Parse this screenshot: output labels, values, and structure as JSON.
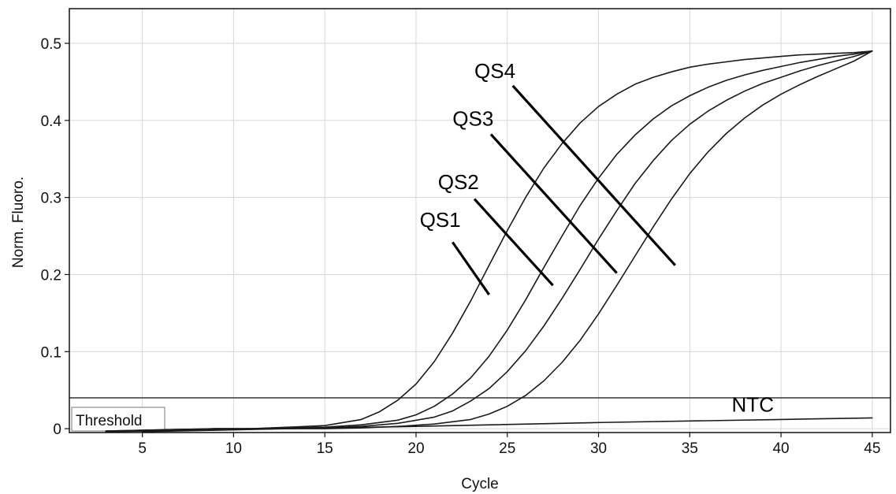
{
  "chart_data": {
    "type": "line",
    "xlabel": "Cycle",
    "ylabel": "Norm. Fluoro.",
    "xlim": [
      1,
      46
    ],
    "ylim": [
      -0.005,
      0.545
    ],
    "xticks": [
      5,
      10,
      15,
      20,
      25,
      30,
      35,
      40,
      45
    ],
    "yticks": [
      0,
      0.1,
      0.2,
      0.3,
      0.4,
      0.5
    ],
    "ytick_labels": [
      "0",
      "0.1",
      "0.2",
      "0.3",
      "0.4",
      "0.5"
    ],
    "grid": true,
    "threshold": {
      "label": "Threshold",
      "value": 0.04
    },
    "series": [
      {
        "name": "QS1",
        "x": [
          3,
          5,
          7,
          9,
          11,
          13,
          15,
          17,
          18,
          19,
          20,
          21,
          22,
          23,
          24,
          25,
          26,
          27,
          28,
          29,
          30,
          31,
          32,
          33,
          34,
          35,
          36,
          37,
          38,
          39,
          40,
          41,
          42,
          43,
          44,
          45
        ],
        "y": [
          -0.003,
          -0.002,
          -0.001,
          0.0,
          0.0,
          0.002,
          0.004,
          0.012,
          0.022,
          0.037,
          0.058,
          0.087,
          0.124,
          0.166,
          0.212,
          0.257,
          0.3,
          0.338,
          0.37,
          0.397,
          0.418,
          0.434,
          0.447,
          0.456,
          0.463,
          0.469,
          0.473,
          0.476,
          0.479,
          0.481,
          0.483,
          0.485,
          0.486,
          0.487,
          0.488,
          0.49
        ]
      },
      {
        "name": "QS2",
        "x": [
          3,
          5,
          7,
          9,
          11,
          13,
          15,
          17,
          19,
          20,
          21,
          22,
          23,
          24,
          25,
          26,
          27,
          28,
          29,
          30,
          31,
          32,
          33,
          34,
          35,
          36,
          37,
          38,
          39,
          40,
          41,
          42,
          43,
          44,
          45
        ],
        "y": [
          -0.003,
          -0.002,
          -0.001,
          0.0,
          0.0,
          0.001,
          0.002,
          0.005,
          0.011,
          0.018,
          0.029,
          0.045,
          0.066,
          0.094,
          0.128,
          0.167,
          0.209,
          0.25,
          0.29,
          0.325,
          0.356,
          0.381,
          0.402,
          0.419,
          0.432,
          0.443,
          0.452,
          0.459,
          0.465,
          0.47,
          0.475,
          0.479,
          0.483,
          0.486,
          0.49
        ]
      },
      {
        "name": "QS3",
        "x": [
          5,
          7,
          9,
          11,
          13,
          15,
          17,
          19,
          21,
          22,
          23,
          24,
          25,
          26,
          27,
          28,
          29,
          30,
          31,
          32,
          33,
          34,
          35,
          36,
          37,
          38,
          39,
          40,
          41,
          42,
          43,
          44,
          45
        ],
        "y": [
          -0.003,
          -0.002,
          -0.001,
          0.0,
          0.0,
          0.001,
          0.003,
          0.007,
          0.015,
          0.023,
          0.036,
          0.052,
          0.074,
          0.101,
          0.133,
          0.169,
          0.207,
          0.246,
          0.283,
          0.318,
          0.348,
          0.374,
          0.395,
          0.412,
          0.426,
          0.438,
          0.448,
          0.456,
          0.464,
          0.471,
          0.477,
          0.483,
          0.49
        ]
      },
      {
        "name": "QS4",
        "x": [
          5,
          7,
          9,
          11,
          13,
          15,
          17,
          19,
          21,
          23,
          24,
          25,
          26,
          27,
          28,
          29,
          30,
          31,
          32,
          33,
          34,
          35,
          36,
          37,
          38,
          39,
          40,
          41,
          42,
          43,
          44,
          45
        ],
        "y": [
          -0.004,
          -0.003,
          -0.002,
          -0.001,
          0.0,
          0.0,
          0.001,
          0.003,
          0.006,
          0.012,
          0.019,
          0.029,
          0.043,
          0.062,
          0.086,
          0.115,
          0.149,
          0.186,
          0.224,
          0.262,
          0.298,
          0.331,
          0.359,
          0.383,
          0.403,
          0.42,
          0.434,
          0.446,
          0.457,
          0.467,
          0.477,
          0.49
        ]
      },
      {
        "name": "NTC",
        "x": [
          3,
          10,
          20,
          30,
          40,
          45
        ],
        "y": [
          -0.004,
          -0.001,
          0.003,
          0.008,
          0.012,
          0.014
        ]
      }
    ],
    "annotations": [
      {
        "text": "QS1",
        "text_x": 20.2,
        "text_y": 0.262,
        "line": [
          [
            22.0,
            0.242
          ],
          [
            24.0,
            0.174
          ]
        ]
      },
      {
        "text": "QS2",
        "text_x": 21.2,
        "text_y": 0.311,
        "line": [
          [
            23.2,
            0.298
          ],
          [
            27.5,
            0.186
          ]
        ]
      },
      {
        "text": "QS3",
        "text_x": 22.0,
        "text_y": 0.393,
        "line": [
          [
            24.1,
            0.382
          ],
          [
            31.0,
            0.202
          ]
        ]
      },
      {
        "text": "QS4",
        "text_x": 23.2,
        "text_y": 0.455,
        "line": [
          [
            25.3,
            0.445
          ],
          [
            34.2,
            0.212
          ]
        ]
      },
      {
        "text": "NTC",
        "text_x": 37.3,
        "text_y": 0.022,
        "line": null
      }
    ]
  }
}
